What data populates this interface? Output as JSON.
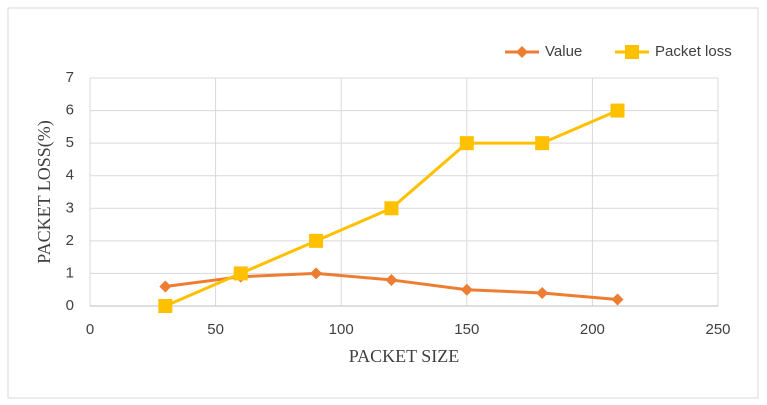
{
  "chart_data": {
    "type": "line",
    "x_label": "PACKET SIZE",
    "y_label": "PACKET LOSS(%)",
    "x": [
      30,
      60,
      90,
      120,
      150,
      180,
      210
    ],
    "series": [
      {
        "name": "Value",
        "color": "#ed7d31",
        "marker": "diamond",
        "values": [
          0.6,
          0.9,
          1.0,
          0.8,
          0.5,
          0.4,
          0.2
        ]
      },
      {
        "name": "Packet loss",
        "color": "#ffc000",
        "marker": "square",
        "values": [
          0,
          1,
          2,
          3,
          5,
          5,
          6
        ]
      }
    ],
    "xlim": [
      0,
      250
    ],
    "xticks": [
      0,
      50,
      100,
      150,
      200,
      250
    ],
    "ylim": [
      0,
      7
    ],
    "yticks": [
      0,
      1,
      2,
      3,
      4,
      5,
      6,
      7
    ],
    "grid": true,
    "legend": "top-right"
  }
}
